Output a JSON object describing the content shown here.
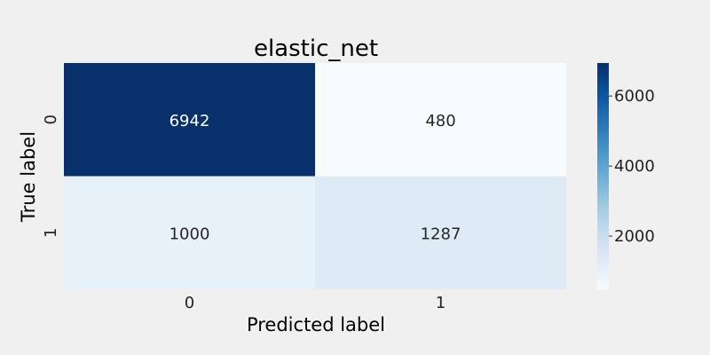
{
  "chart_data": {
    "type": "heatmap",
    "title": "elastic_net",
    "xlabel": "Predicted label",
    "ylabel": "True label",
    "x_categories": [
      "0",
      "1"
    ],
    "y_categories": [
      "0",
      "1"
    ],
    "values": [
      [
        6942,
        480
      ],
      [
        1000,
        1287
      ]
    ],
    "colormap": "Blues",
    "colorbar": {
      "range": [
        480,
        6942
      ],
      "ticks": [
        2000,
        4000,
        6000
      ],
      "tick_labels": [
        "2000",
        "4000",
        "6000"
      ]
    },
    "grid": false,
    "legend": "colorbar-right"
  }
}
